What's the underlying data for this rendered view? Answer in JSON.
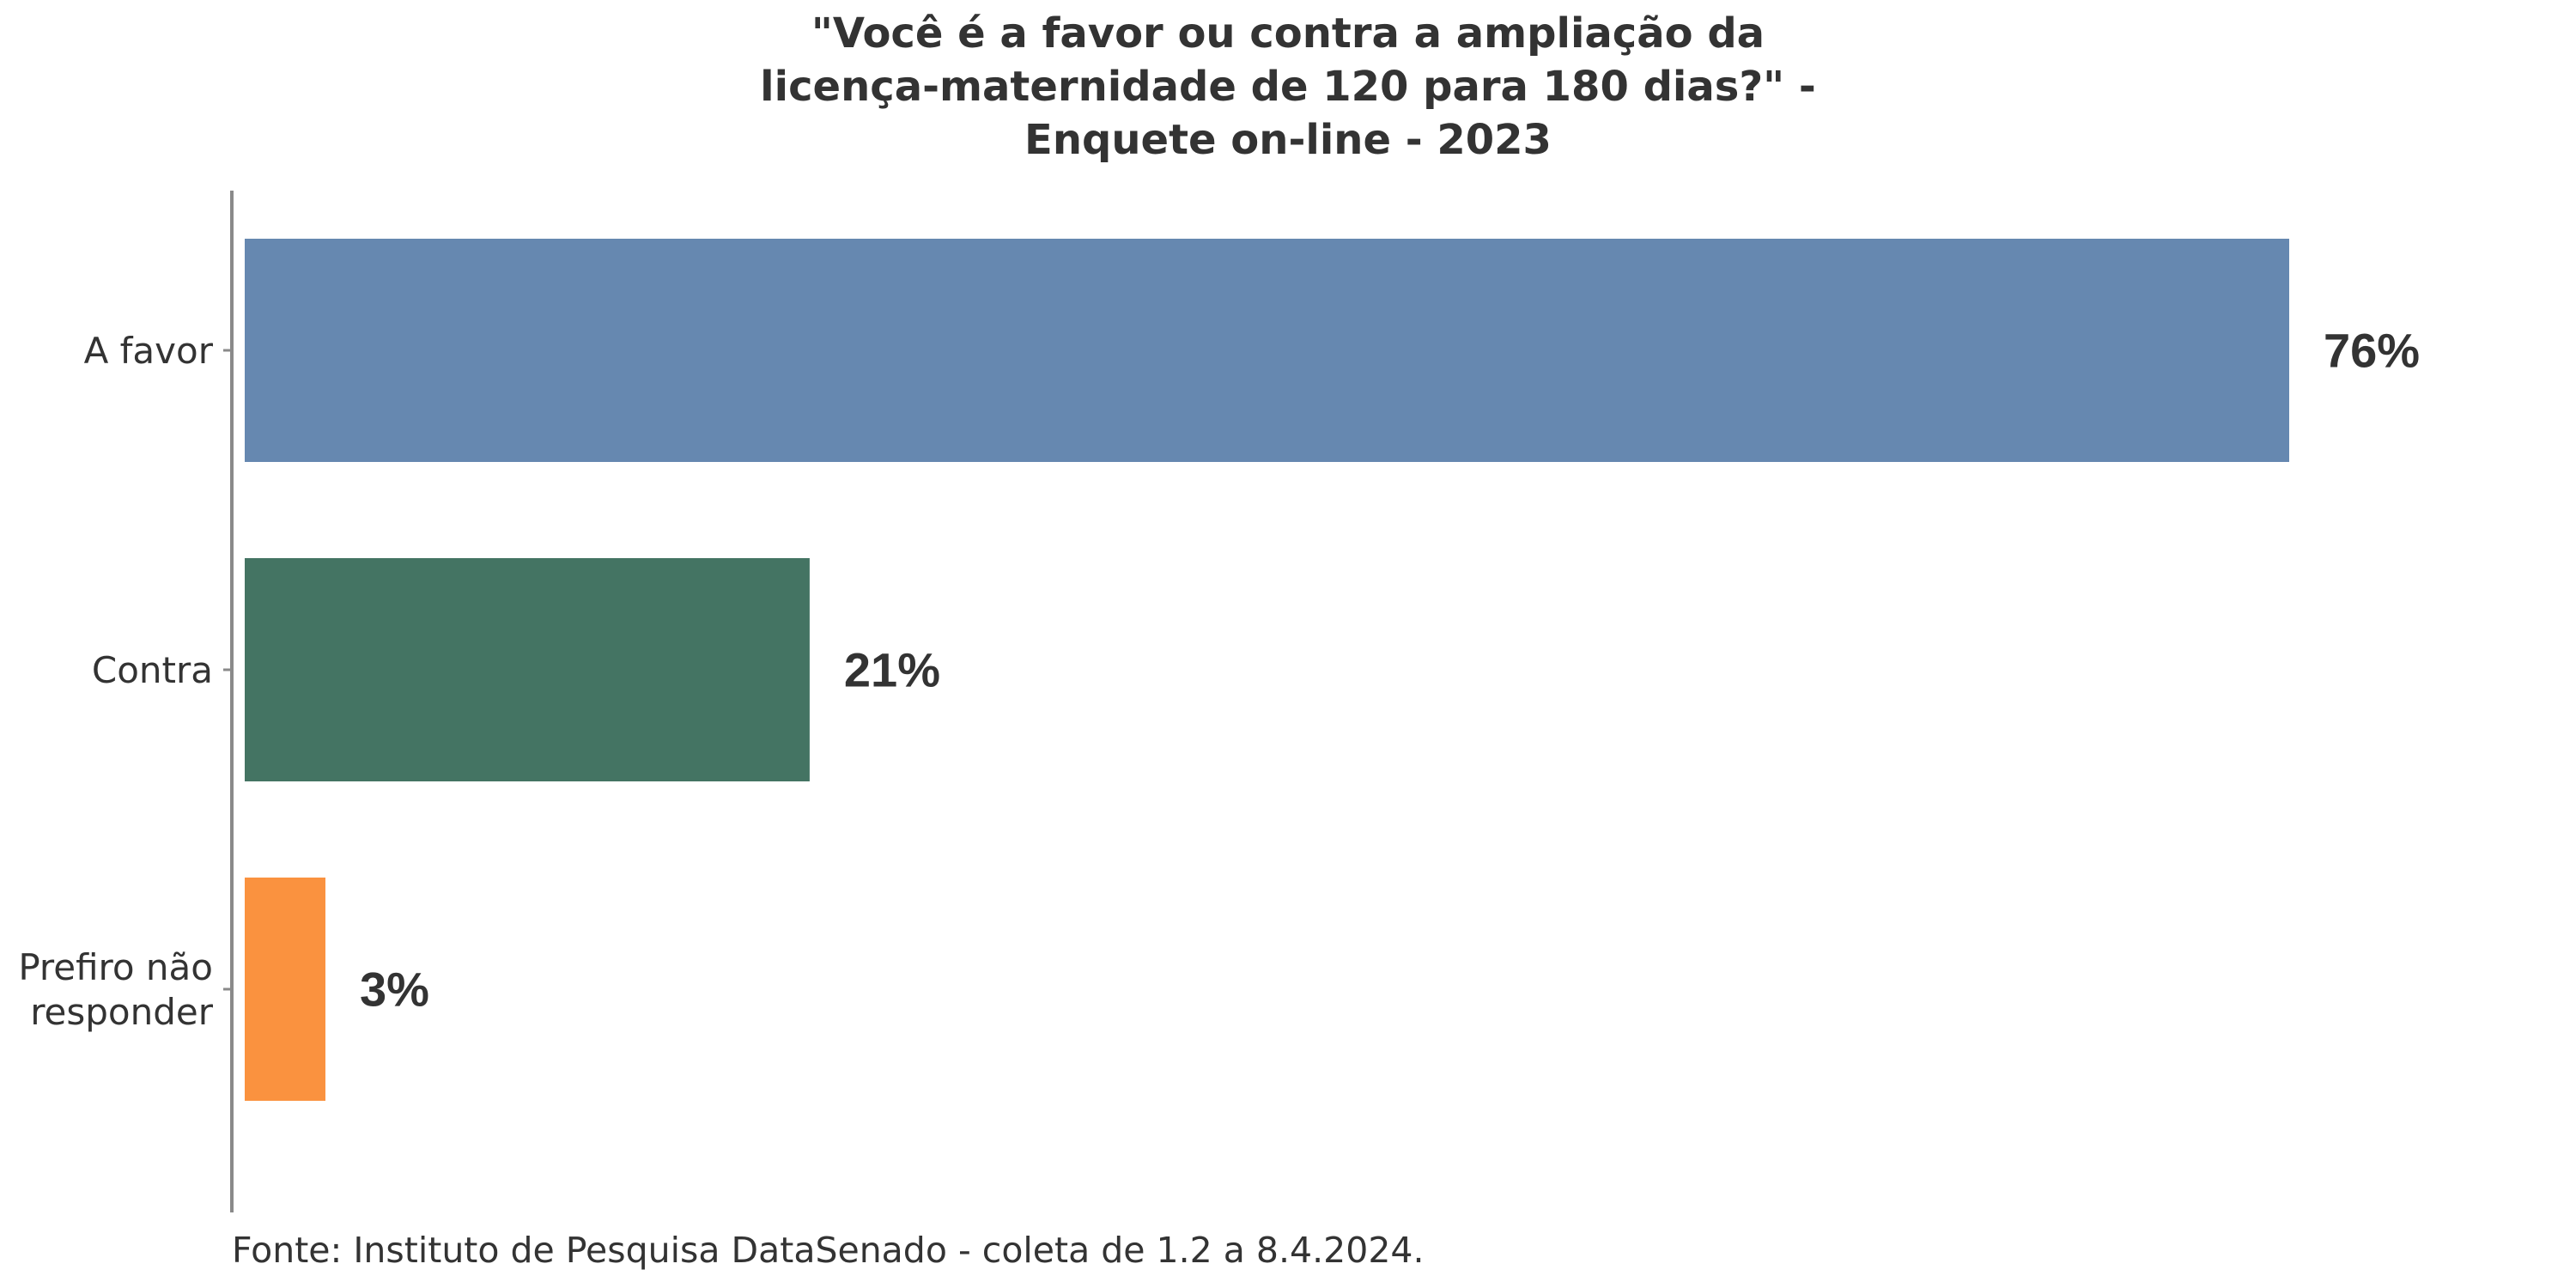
{
  "chart_data": {
    "type": "bar",
    "orientation": "horizontal",
    "title_lines": [
      "\"Você é a favor ou contra a ampliação da",
      "licença-maternidade de 120 para 180 dias?\" -",
      "Enquete on-line - 2023"
    ],
    "categories": [
      [
        "A favor"
      ],
      [
        "Contra"
      ],
      [
        "Prefiro não",
        "responder"
      ]
    ],
    "values": [
      76,
      21,
      3
    ],
    "value_labels": [
      "76%",
      "21%",
      "3%"
    ],
    "colors": [
      "#6688b0",
      "#447463",
      "#fa923f"
    ],
    "xlim": [
      0,
      80
    ],
    "xlabel": "",
    "ylabel": "",
    "grid": false,
    "legend": "none",
    "source": "Fonte: Instituto de Pesquisa DataSenado - coleta de 1.2 a 8.4.2024."
  }
}
